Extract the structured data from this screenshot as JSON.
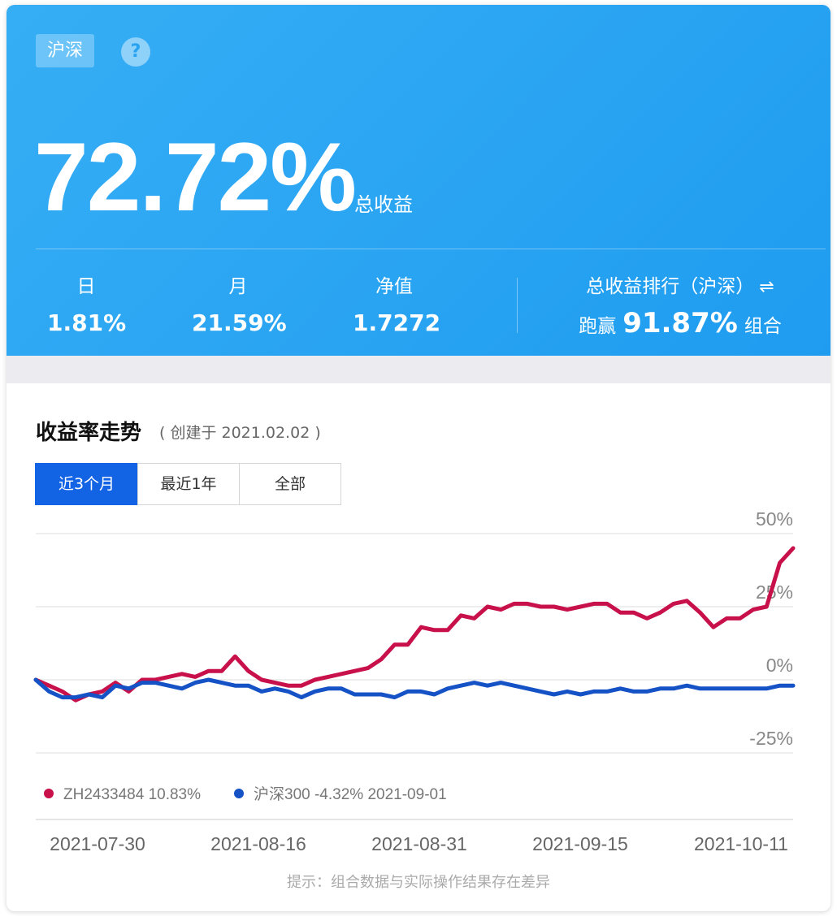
{
  "header": {
    "tag": "沪深",
    "help_icon": "?",
    "total_return": "72.72%",
    "total_return_label": "总收益",
    "stats": {
      "day_label": "日",
      "day_value": "1.81%",
      "month_label": "月",
      "month_value": "21.59%",
      "nav_label": "净值",
      "nav_value": "1.7272"
    },
    "rank": {
      "label": "总收益排行（沪深）",
      "swap_icon": "⇌",
      "prefix": "跑赢",
      "value": "91.87%",
      "suffix": "组合"
    }
  },
  "card": {
    "title": "收益率走势",
    "subtitle": "( 创建于 2021.02.02 )",
    "tabs": [
      "近3个月",
      "最近1年",
      "全部"
    ],
    "active_tab": 0,
    "note": "提示：组合数据与实际操作结果存在差异"
  },
  "colors": {
    "portfolio": "#c8104a",
    "index": "#1552c6",
    "accent": "#1264e4"
  },
  "chart_data": {
    "type": "line",
    "yticks": [
      "50%",
      "25%",
      "0%",
      "-25%"
    ],
    "ytick_values": [
      50,
      25,
      0,
      -25
    ],
    "ylim": [
      -25,
      50
    ],
    "xticks": [
      "2021-07-30",
      "2021-08-16",
      "2021-08-31",
      "2021-09-15",
      "2021-10-11"
    ],
    "legend": {
      "portfolio": "ZH2433484 10.83%",
      "index": "沪深300 -4.32% 2021-09-01"
    },
    "series": [
      {
        "name": "ZH2433484",
        "values": [
          0,
          -2,
          -4,
          -7,
          -5,
          -4,
          -1,
          -4,
          0,
          0,
          1,
          2,
          1,
          3,
          3,
          8,
          3,
          0,
          -1,
          -2,
          -2,
          0,
          1,
          2,
          3,
          4,
          7,
          12,
          12,
          18,
          17,
          17,
          22,
          21,
          25,
          24,
          26,
          26,
          25,
          25,
          24,
          25,
          26,
          26,
          23,
          23,
          21,
          23,
          26,
          27,
          23,
          18,
          21,
          21,
          24,
          25,
          40,
          45
        ]
      },
      {
        "name": "沪深300",
        "values": [
          0,
          -4,
          -6,
          -6,
          -5,
          -6,
          -2,
          -3,
          -1,
          -1,
          -2,
          -3,
          -1,
          0,
          -1,
          -2,
          -2,
          -4,
          -3,
          -4,
          -6,
          -4,
          -3,
          -3,
          -5,
          -5,
          -5,
          -6,
          -4,
          -4,
          -5,
          -3,
          -2,
          -1,
          -2,
          -1,
          -2,
          -3,
          -4,
          -5,
          -4,
          -5,
          -4,
          -4,
          -3,
          -4,
          -4,
          -3,
          -3,
          -2,
          -3,
          -3,
          -3,
          -3,
          -3,
          -3,
          -2,
          -2
        ]
      }
    ]
  }
}
